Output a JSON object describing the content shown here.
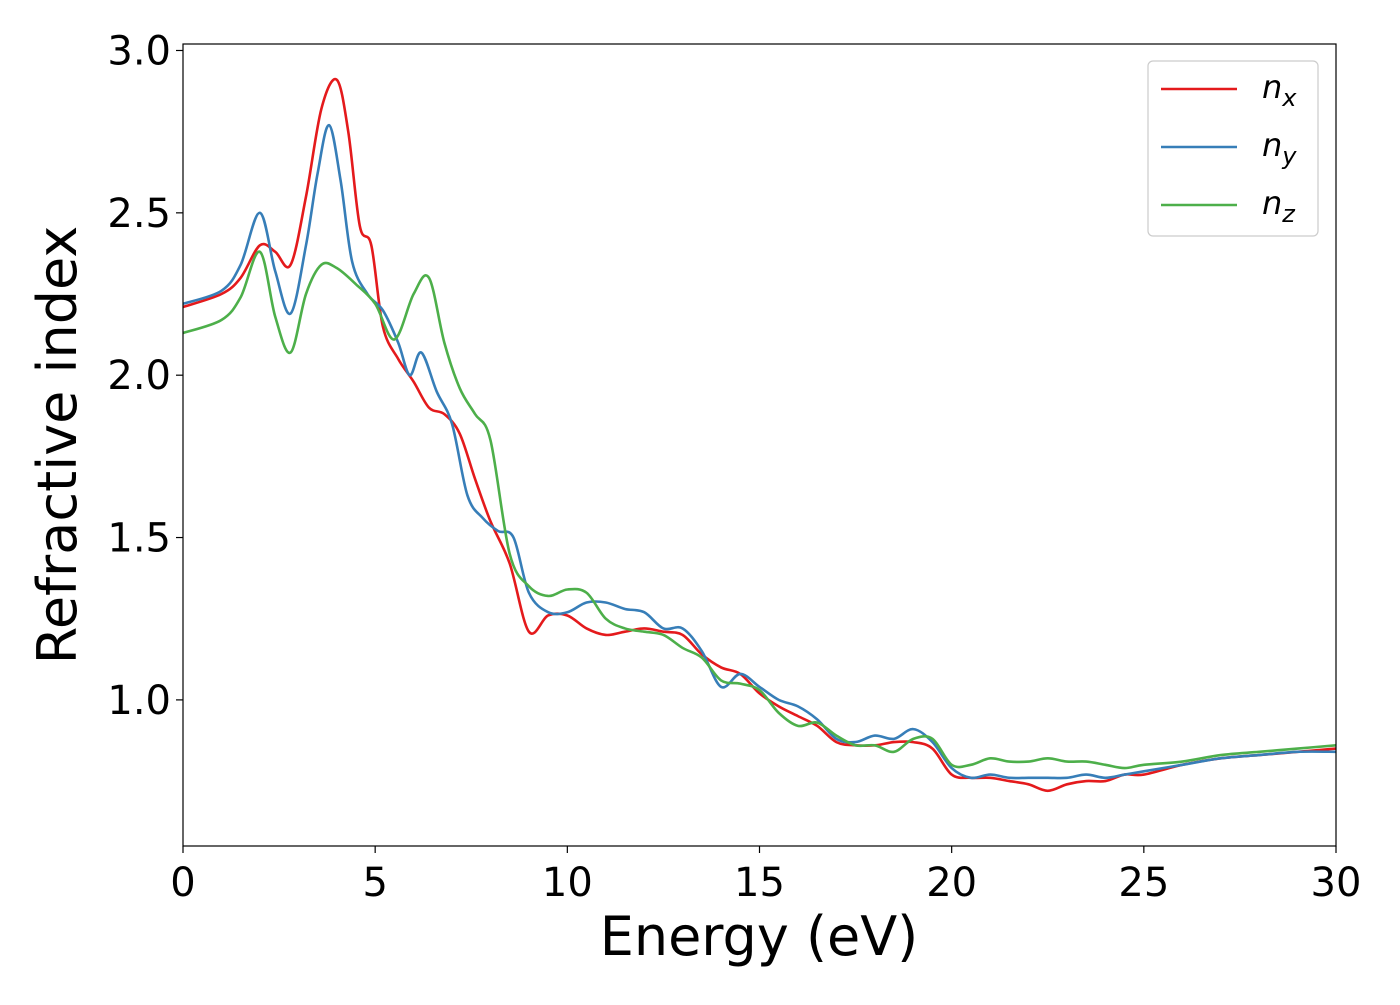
{
  "chart_data": {
    "type": "line",
    "title": "",
    "xlabel": "Energy (eV)",
    "ylabel": "Refractive index",
    "xlim": [
      0,
      30
    ],
    "ylim": [
      0.55,
      3.02
    ],
    "xticks": [
      0,
      5,
      10,
      15,
      20,
      25,
      30
    ],
    "yticks": [
      1.0,
      1.5,
      2.0,
      2.5,
      3.0
    ],
    "xtick_labels": [
      "0",
      "5",
      "10",
      "15",
      "20",
      "25",
      "30"
    ],
    "ytick_labels": [
      "1.0",
      "1.5",
      "2.0",
      "2.5",
      "3.0"
    ],
    "grid": false,
    "legend_position": "top-right",
    "series": [
      {
        "name": "n_x",
        "label_base": "n",
        "label_sub": "x",
        "color": "#e41a1c",
        "x": [
          0,
          1,
          1.5,
          2,
          2.4,
          2.8,
          3.2,
          3.6,
          4,
          4.3,
          4.6,
          4.9,
          5.2,
          5.6,
          6,
          6.4,
          6.8,
          7.2,
          7.6,
          8,
          8.5,
          9,
          9.5,
          10,
          10.5,
          11,
          11.5,
          12,
          12.5,
          13,
          13.5,
          14,
          14.5,
          15,
          15.5,
          16,
          16.5,
          17,
          17.5,
          18,
          18.5,
          19,
          19.5,
          20,
          20.5,
          21,
          21.5,
          22,
          22.5,
          23,
          23.5,
          24,
          24.5,
          25,
          26,
          27,
          28,
          29,
          30
        ],
        "y": [
          2.21,
          2.25,
          2.3,
          2.4,
          2.38,
          2.34,
          2.55,
          2.82,
          2.91,
          2.75,
          2.46,
          2.4,
          2.15,
          2.05,
          1.98,
          1.9,
          1.88,
          1.82,
          1.68,
          1.55,
          1.42,
          1.21,
          1.26,
          1.26,
          1.22,
          1.2,
          1.21,
          1.22,
          1.21,
          1.2,
          1.14,
          1.1,
          1.08,
          1.02,
          0.98,
          0.95,
          0.92,
          0.87,
          0.86,
          0.86,
          0.87,
          0.87,
          0.85,
          0.77,
          0.76,
          0.76,
          0.75,
          0.74,
          0.72,
          0.74,
          0.75,
          0.75,
          0.77,
          0.77,
          0.8,
          0.82,
          0.83,
          0.84,
          0.85
        ]
      },
      {
        "name": "n_y",
        "label_base": "n",
        "label_sub": "y",
        "color": "#377eb8",
        "x": [
          0,
          1,
          1.5,
          2,
          2.4,
          2.8,
          3.2,
          3.5,
          3.8,
          4.1,
          4.4,
          4.8,
          5.2,
          5.6,
          5.9,
          6.2,
          6.6,
          7,
          7.4,
          7.8,
          8.2,
          8.6,
          9,
          9.5,
          10,
          10.5,
          11,
          11.5,
          12,
          12.5,
          13,
          13.5,
          14,
          14.5,
          15,
          15.5,
          16,
          16.5,
          17,
          17.5,
          18,
          18.5,
          19,
          19.5,
          20,
          20.5,
          21,
          21.5,
          22,
          22.5,
          23,
          23.5,
          24,
          24.5,
          25,
          26,
          27,
          28,
          29,
          30
        ],
        "y": [
          2.22,
          2.26,
          2.34,
          2.5,
          2.32,
          2.19,
          2.4,
          2.62,
          2.77,
          2.6,
          2.35,
          2.25,
          2.2,
          2.1,
          2.0,
          2.07,
          1.95,
          1.85,
          1.63,
          1.56,
          1.52,
          1.5,
          1.33,
          1.27,
          1.27,
          1.3,
          1.3,
          1.28,
          1.27,
          1.22,
          1.22,
          1.15,
          1.04,
          1.08,
          1.04,
          1.0,
          0.98,
          0.94,
          0.88,
          0.87,
          0.89,
          0.88,
          0.91,
          0.87,
          0.79,
          0.76,
          0.77,
          0.76,
          0.76,
          0.76,
          0.76,
          0.77,
          0.76,
          0.77,
          0.78,
          0.8,
          0.82,
          0.83,
          0.84,
          0.84
        ]
      },
      {
        "name": "n_z",
        "label_base": "n",
        "label_sub": "z",
        "color": "#4daf4a",
        "x": [
          0,
          1,
          1.5,
          2,
          2.4,
          2.8,
          3.2,
          3.6,
          4,
          4.5,
          5,
          5.5,
          6,
          6.4,
          6.8,
          7.2,
          7.6,
          8,
          8.5,
          9,
          9.5,
          10,
          10.5,
          11,
          11.5,
          12,
          12.5,
          13,
          13.5,
          14,
          14.5,
          15,
          15.5,
          16,
          16.5,
          17,
          17.5,
          18,
          18.5,
          19,
          19.5,
          20,
          20.5,
          21,
          21.5,
          22,
          22.5,
          23,
          23.5,
          24,
          24.5,
          25,
          26,
          27,
          28,
          29,
          30
        ],
        "y": [
          2.13,
          2.17,
          2.24,
          2.38,
          2.18,
          2.07,
          2.25,
          2.34,
          2.33,
          2.28,
          2.22,
          2.11,
          2.25,
          2.3,
          2.1,
          1.96,
          1.88,
          1.8,
          1.45,
          1.35,
          1.32,
          1.34,
          1.33,
          1.25,
          1.22,
          1.21,
          1.2,
          1.16,
          1.13,
          1.06,
          1.05,
          1.03,
          0.96,
          0.92,
          0.93,
          0.89,
          0.86,
          0.86,
          0.84,
          0.88,
          0.88,
          0.8,
          0.8,
          0.82,
          0.81,
          0.81,
          0.82,
          0.81,
          0.81,
          0.8,
          0.79,
          0.8,
          0.81,
          0.83,
          0.84,
          0.85,
          0.86
        ]
      }
    ]
  }
}
